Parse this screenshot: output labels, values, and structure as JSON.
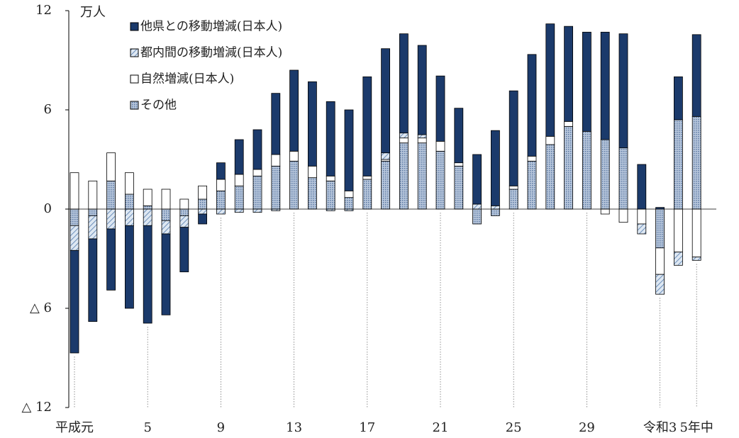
{
  "chart_data": {
    "type": "stacked_bar",
    "y_unit": "万人",
    "categories": [
      "平成元",
      null,
      null,
      null,
      "5",
      null,
      null,
      null,
      "9",
      null,
      null,
      null,
      "13",
      null,
      null,
      null,
      "17",
      null,
      null,
      null,
      "21",
      null,
      null,
      null,
      "25",
      null,
      null,
      null,
      "29",
      null,
      null,
      null,
      "令和3",
      null,
      "5年中"
    ],
    "series": [
      {
        "name": "他県との移動増減(日本人)",
        "color": "#1b3a6b",
        "pattern": "solid",
        "values": [
          -6.2,
          -5.0,
          -3.7,
          -5.0,
          -5.9,
          -4.9,
          -2.7,
          -0.6,
          1.0,
          2.1,
          2.4,
          3.7,
          4.9,
          5.1,
          4.5,
          4.9,
          6.0,
          6.3,
          6.0,
          5.4,
          3.95,
          3.3,
          3.0,
          4.55,
          5.75,
          6.15,
          6.8,
          5.75,
          6.0,
          6.5,
          6.9,
          2.7,
          0.1,
          2.6,
          4.95
        ]
      },
      {
        "name": "都内間の移動増減(日本人)",
        "color": "#a9c0dc",
        "pattern": "hatch",
        "values": [
          -1.5,
          -1.4,
          -1.2,
          -1.0,
          -1.0,
          -0.8,
          -0.7,
          -0.3,
          -0.3,
          -0.2,
          -0.2,
          -0.1,
          0,
          0,
          -0.1,
          -0.1,
          0,
          0.4,
          0.3,
          0.2,
          0,
          0,
          0.3,
          0.2,
          0,
          0,
          0,
          0,
          0,
          0,
          0,
          -0.6,
          -1.2,
          -0.8,
          -0.2
        ]
      },
      {
        "name": "自然増減(日本人)",
        "color": "#ffffff",
        "pattern": "solid",
        "values": [
          2.2,
          1.7,
          1.7,
          1.3,
          1.0,
          1.2,
          0.6,
          0.8,
          0.7,
          0.7,
          0.4,
          0.7,
          0.6,
          0.7,
          0.3,
          0.4,
          0.2,
          0.1,
          0.3,
          0.3,
          0.6,
          0.2,
          0,
          0,
          0.2,
          0.3,
          0.5,
          0.3,
          0,
          -0.3,
          -0.8,
          -0.9,
          -1.6,
          -2.6,
          -2.9
        ]
      },
      {
        "name": "その他",
        "color": "#8fa5c7",
        "pattern": "dots",
        "values": [
          -1.0,
          -0.4,
          1.7,
          0.9,
          0.2,
          -0.7,
          -0.4,
          0.6,
          1.1,
          1.4,
          2.0,
          2.6,
          2.9,
          1.9,
          1.7,
          0.7,
          1.8,
          2.9,
          4.0,
          4.0,
          3.5,
          2.6,
          -0.9,
          -0.4,
          1.2,
          2.9,
          3.9,
          5.0,
          4.7,
          4.2,
          3.7,
          0,
          -2.35,
          5.4,
          5.6
        ]
      }
    ],
    "ylim": [
      -12,
      12
    ],
    "yticks": [
      {
        "value": -12,
        "label": "△ 12"
      },
      {
        "value": -6,
        "label": "△ 6"
      },
      0,
      6,
      12
    ]
  }
}
